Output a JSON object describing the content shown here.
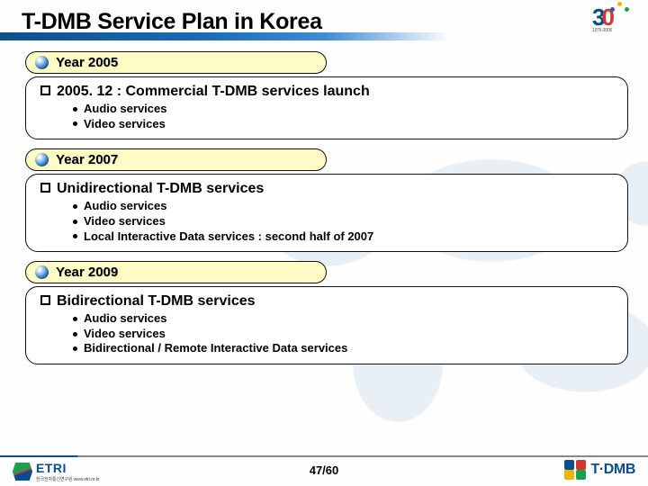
{
  "title": "T-DMB Service Plan in Korea",
  "sections": [
    {
      "year_label": "Year 2005",
      "heading": "2005. 12 : Commercial T-DMB services launch",
      "bullets": [
        "Audio services",
        "Video services"
      ]
    },
    {
      "year_label": "Year 2007",
      "heading": "Unidirectional T-DMB services",
      "bullets": [
        "Audio services",
        "Video services",
        "Local Interactive Data services : second half of 2007"
      ]
    },
    {
      "year_label": "Year 2009",
      "heading": "Bidirectional T-DMB services",
      "bullets": [
        "Audio services",
        "Video services",
        "Bidirectional / Remote Interactive Data services"
      ]
    }
  ],
  "footer": {
    "pager": "47/60",
    "etri_text": "ETRI",
    "etri_sub": "한국전자통신연구원  www.etri.re.kr",
    "tdmb_text": "T·DMB"
  },
  "corner_logo": {
    "three": "3",
    "zero": "0",
    "sub": "1976-2006"
  },
  "colors": {
    "title_bar_gradient_start": "#0d4f8b",
    "year_pill_bg": "#fffbc4",
    "border": "#111111"
  }
}
